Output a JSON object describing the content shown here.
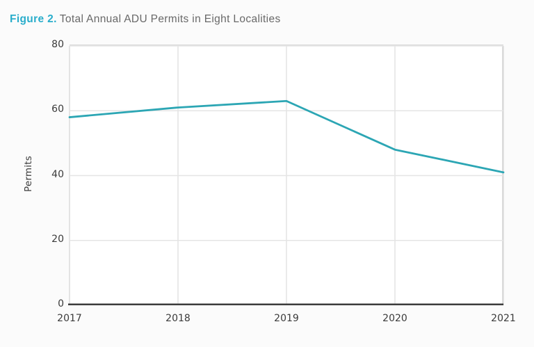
{
  "title": {
    "label": "Figure 2.",
    "text": "Total Annual ADU Permits in Eight Localities"
  },
  "colors": {
    "accent": "#29adcb",
    "line": "#2ca6b4",
    "grid": "#e4e4e4",
    "edge_grid": "#dcdcdc",
    "axis": "#3d3d3d",
    "tick_text": "#3a3a3a",
    "caption_text": "#686868",
    "plot_background": "#ffffff",
    "page_background": "#fbfbfb"
  },
  "chart_data": {
    "type": "line",
    "title": "Total Annual ADU Permits in Eight Localities",
    "categories": [
      "2017",
      "2018",
      "2019",
      "2020",
      "2021"
    ],
    "values": [
      58,
      61,
      63,
      48,
      41
    ],
    "xlabel": "",
    "ylabel": "Permits",
    "ylim": [
      0,
      80
    ],
    "yticks": [
      0,
      20,
      40,
      60,
      80
    ],
    "grid": true,
    "legend": false,
    "markers": false
  }
}
